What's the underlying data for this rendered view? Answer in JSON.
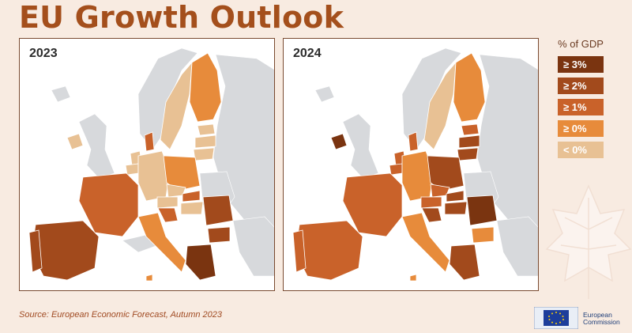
{
  "title": "EU Growth Outlook",
  "maps": [
    {
      "year": "2023"
    },
    {
      "year": "2024"
    }
  ],
  "legend": {
    "title": "% of GDP",
    "items": [
      {
        "label": "≥ 3%",
        "color": "#7a3410"
      },
      {
        "label": "≥ 2%",
        "color": "#a24a1c"
      },
      {
        "label": "≥ 1%",
        "color": "#c9622a"
      },
      {
        "label": "≥ 0%",
        "color": "#e78b3b"
      },
      {
        "label": "< 0%",
        "color": "#e8c194"
      }
    ]
  },
  "source": "Source: European Economic Forecast, Autumn 2023",
  "logo": {
    "line1": "European",
    "line2": "Commission",
    "icon": "eu-flag-icon"
  },
  "colors": {
    "title": "#a44f1c",
    "background": "#f8ebe1",
    "non_eu": "#d7d9dc"
  }
}
